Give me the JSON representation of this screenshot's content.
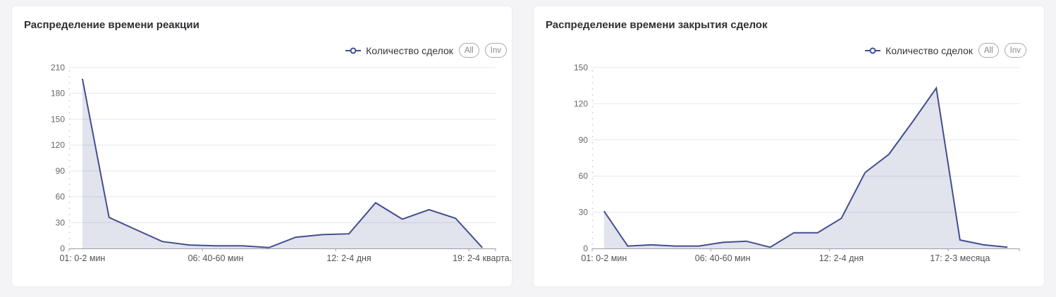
{
  "legend_buttons": {
    "all": "All",
    "inv": "Inv"
  },
  "chart_data": [
    {
      "type": "area",
      "title": "Распределение времени реакции",
      "series": [
        {
          "name": "Количество сделок",
          "values": [
            197,
            36,
            22,
            8,
            4,
            3,
            3,
            1,
            13,
            16,
            17,
            53,
            34,
            45,
            35,
            1
          ]
        }
      ],
      "x_tick_labels": [
        {
          "index": 0,
          "label": "01: 0-2 мин"
        },
        {
          "index": 5,
          "label": "06: 40-60 мин"
        },
        {
          "index": 10,
          "label": "12: 2-4 дня"
        },
        {
          "index": 15,
          "label": "19: 2-4 кварта."
        }
      ],
      "ylim": [
        0,
        210
      ],
      "y_step": 30,
      "grid": true,
      "legend_position": "top-right"
    },
    {
      "type": "area",
      "title": "Распределение времени закрытия сделок",
      "series": [
        {
          "name": "Количество сделок",
          "values": [
            31,
            2,
            3,
            2,
            2,
            5,
            6,
            1,
            13,
            13,
            25,
            63,
            78,
            105,
            133,
            7,
            3,
            1
          ]
        }
      ],
      "x_tick_labels": [
        {
          "index": 0,
          "label": "01: 0-2 мин"
        },
        {
          "index": 5,
          "label": "06: 40-60 мин"
        },
        {
          "index": 10,
          "label": "12: 2-4 дня"
        },
        {
          "index": 15,
          "label": "17: 2-3 месяца"
        }
      ],
      "ylim": [
        0,
        150
      ],
      "y_step": 30,
      "grid": true,
      "legend_position": "top-right"
    }
  ],
  "colors": {
    "accent": "#434e8f",
    "area_fill": "rgba(67, 78, 143, 0.16)",
    "grid": "#e3e7f0",
    "axis": "#9b9ea3",
    "tick_dots": "#c6c9d0",
    "y_label": "#63666b",
    "x_label": "#4f5256",
    "title": "#2e2f33",
    "legend_text": "#36373a",
    "pill_border": "#a6a9af",
    "pill_text": "#85888e",
    "panel_bg": "#ffffff",
    "page_bg": "#f4f4f6"
  }
}
